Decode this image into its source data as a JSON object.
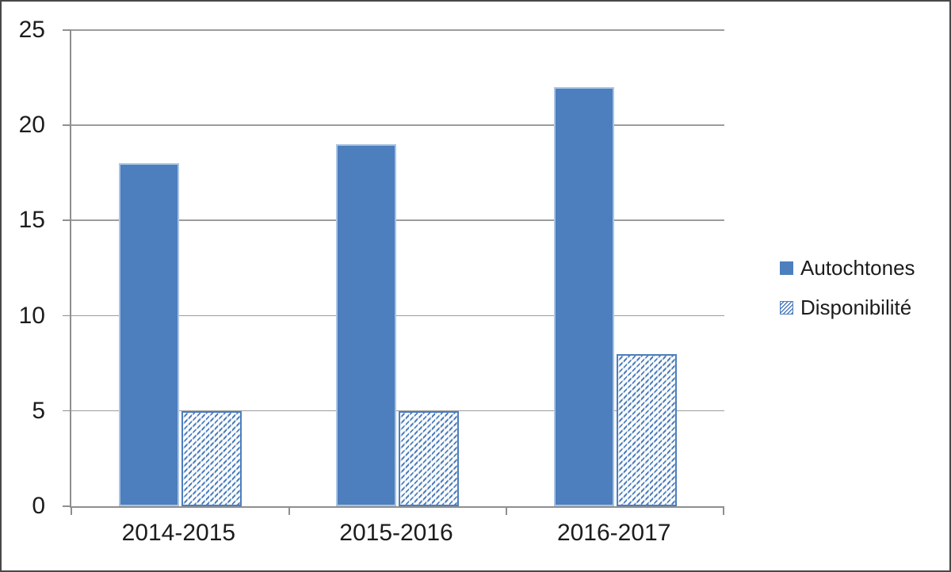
{
  "chart_data": {
    "type": "bar",
    "title": "",
    "xlabel": "",
    "ylabel": "",
    "categories": [
      "2014-2015",
      "2015-2016",
      "2016-2017"
    ],
    "series": [
      {
        "name": "Autochtones",
        "style": "solid",
        "values": [
          18,
          19,
          22
        ]
      },
      {
        "name": "Disponibilité",
        "style": "hatched",
        "values": [
          5,
          5,
          8
        ]
      }
    ],
    "ylim": [
      0,
      25
    ],
    "yticks": [
      0,
      5,
      10,
      15,
      20,
      25
    ],
    "grid": true,
    "legend_position": "right"
  },
  "colors": {
    "bar_fill": "#4d7ebd",
    "bar_light_edge": "#a9c4e3",
    "hatch_line": "#4d7ebd",
    "gridline": "#9c9c9c",
    "axis": "#8f8f8f",
    "frame_border": "#484848",
    "text": "#1c1c1c",
    "background": "#ffffff"
  }
}
